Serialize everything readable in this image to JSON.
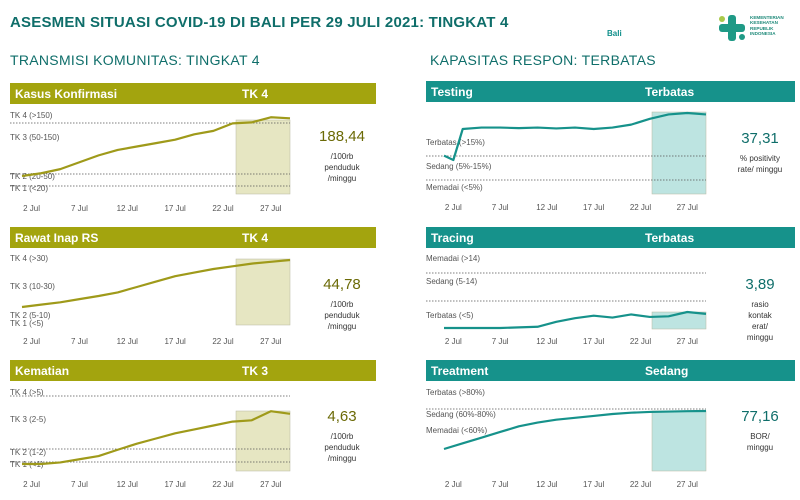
{
  "title": "ASESMEN SITUASI COVID-19 DI BALI PER 29 JULI 2021: TINGKAT 4",
  "region": "Bali",
  "logo_text": [
    "KEMENTERIAN",
    "KESEHATAN",
    "REPUBLIK",
    "INDONESIA"
  ],
  "colors": {
    "olive": "#a3a40e",
    "teal": "#16928b",
    "olive_line": "#9f9a1a",
    "teal_line": "#16928b"
  },
  "left_title": "TRANSMISI KOMUNITAS: TINGKAT 4",
  "right_title": "KAPASITAS RESPON: TERBATAS",
  "x_ticks": [
    "2 Jul",
    "7 Jul",
    "12 Jul",
    "17 Jul",
    "22 Jul",
    "27 Jul"
  ],
  "panels": [
    {
      "label": "Kasus Konfirmasi",
      "status": "TK 4",
      "value": "188,44",
      "unit_lines": [
        "/100rb",
        "penduduk",
        "/minggu"
      ],
      "y_labels": [
        "TK 4 (>150)",
        "TK 3 (50-150)",
        "TK 2 (20-50)",
        "TK 1 (<20)"
      ]
    },
    {
      "label": "Rawat Inap RS",
      "status": "TK 4",
      "value": "44,78",
      "unit_lines": [
        "/100rb",
        "penduduk",
        "/minggu"
      ],
      "y_labels": [
        "TK 4 (>30)",
        "TK 3 (10-30)",
        "TK 2 (5-10)",
        "TK 1 (<5)"
      ]
    },
    {
      "label": "Kematian",
      "status": "TK 3",
      "value": "4,63",
      "unit_lines": [
        "/100rb",
        "penduduk",
        "/minggu"
      ],
      "y_labels": [
        "TK 4 (>5)",
        "TK 3 (2-5)",
        "TK 2 (1-2)",
        "TK 1 (<1)"
      ]
    },
    {
      "label": "Testing",
      "status": "Terbatas",
      "value": "37,31",
      "unit_lines": [
        "% positivity",
        "rate/ minggu"
      ],
      "y_labels": [
        "Terbatas (>15%)",
        "Sedang (5%-15%)",
        "Memadai (<5%)"
      ]
    },
    {
      "label": "Tracing",
      "status": "Terbatas",
      "value": "3,89",
      "unit_lines": [
        "rasio",
        "kontak",
        "erat/",
        "minggu"
      ],
      "y_labels": [
        "Memadai (>14)",
        "Sedang (5-14)",
        "Terbatas (<5)"
      ]
    },
    {
      "label": "Treatment",
      "status": "Sedang",
      "value": "77,16",
      "unit_lines": [
        "BOR/",
        "minggu"
      ],
      "y_labels": [
        "Terbatas (>80%)",
        "Sedang (60%-80%)",
        "Memadai (<60%)"
      ]
    }
  ],
  "chart_data": [
    {
      "type": "line",
      "title": "Kasus Konfirmasi",
      "x": [
        "1 Jul",
        "3 Jul",
        "5 Jul",
        "7 Jul",
        "9 Jul",
        "11 Jul",
        "13 Jul",
        "15 Jul",
        "17 Jul",
        "19 Jul",
        "21 Jul",
        "23 Jul",
        "25 Jul",
        "27 Jul",
        "29 Jul"
      ],
      "values": [
        18,
        22,
        28,
        38,
        48,
        62,
        72,
        82,
        92,
        108,
        118,
        140,
        143,
        158,
        155
      ],
      "highlight": [
        "22 Jul",
        "29 Jul"
      ]
    },
    {
      "type": "line",
      "title": "Rawat Inap RS",
      "x": [
        "1 Jul",
        "3 Jul",
        "5 Jul",
        "7 Jul",
        "9 Jul",
        "11 Jul",
        "13 Jul",
        "15 Jul",
        "17 Jul",
        "19 Jul",
        "21 Jul",
        "23 Jul",
        "25 Jul",
        "27 Jul",
        "29 Jul"
      ],
      "values": [
        3,
        4.5,
        6,
        8,
        10,
        12,
        15,
        18,
        21,
        23,
        25,
        26.5,
        28,
        29,
        30
      ],
      "highlight": [
        "22 Jul",
        "29 Jul"
      ]
    },
    {
      "type": "line",
      "title": "Kematian",
      "x": [
        "1 Jul",
        "3 Jul",
        "5 Jul",
        "7 Jul",
        "9 Jul",
        "11 Jul",
        "13 Jul",
        "15 Jul",
        "17 Jul",
        "19 Jul",
        "21 Jul",
        "23 Jul",
        "25 Jul",
        "27 Jul",
        "29 Jul"
      ],
      "values": [
        0.8,
        0.8,
        0.9,
        1.1,
        1.3,
        1.7,
        2.1,
        2.5,
        2.9,
        3.2,
        3.5,
        3.8,
        3.9,
        4.6,
        4.4
      ],
      "highlight": [
        "22 Jul",
        "29 Jul"
      ]
    },
    {
      "type": "line",
      "title": "Testing",
      "x": [
        "1 Jul",
        "2 Jul",
        "3 Jul",
        "5 Jul",
        "7 Jul",
        "9 Jul",
        "11 Jul",
        "13 Jul",
        "15 Jul",
        "17 Jul",
        "19 Jul",
        "21 Jul",
        "23 Jul",
        "25 Jul",
        "27 Jul",
        "29 Jul"
      ],
      "values": [
        16,
        15,
        22,
        22.5,
        22.5,
        22.3,
        22.5,
        22.2,
        22.5,
        22,
        22.5,
        23.5,
        25.5,
        27,
        27.5,
        27
      ],
      "highlight": [
        "22 Jul",
        "29 Jul"
      ]
    },
    {
      "type": "line",
      "title": "Tracing",
      "x": [
        "1 Jul",
        "3 Jul",
        "5 Jul",
        "7 Jul",
        "9 Jul",
        "11 Jul",
        "13 Jul",
        "15 Jul",
        "17 Jul",
        "19 Jul",
        "21 Jul",
        "23 Jul",
        "25 Jul",
        "27 Jul",
        "29 Jul"
      ],
      "values": [
        0.6,
        0.6,
        0.6,
        0.6,
        0.7,
        0.8,
        1.6,
        2.2,
        2.6,
        2.3,
        2.8,
        2.4,
        2.5,
        3.2,
        2.9
      ],
      "highlight": [
        "22 Jul",
        "29 Jul"
      ]
    },
    {
      "type": "line",
      "title": "Treatment",
      "x": [
        "1 Jul",
        "3 Jul",
        "5 Jul",
        "7 Jul",
        "9 Jul",
        "11 Jul",
        "13 Jul",
        "15 Jul",
        "17 Jul",
        "19 Jul",
        "21 Jul",
        "23 Jul",
        "25 Jul",
        "27 Jul",
        "29 Jul"
      ],
      "values": [
        57,
        60,
        63,
        66,
        69,
        71,
        72.5,
        73.5,
        74.5,
        75.5,
        76.2,
        76.6,
        76.8,
        77,
        77.1
      ],
      "highlight": [
        "22 Jul",
        "29 Jul"
      ]
    }
  ]
}
